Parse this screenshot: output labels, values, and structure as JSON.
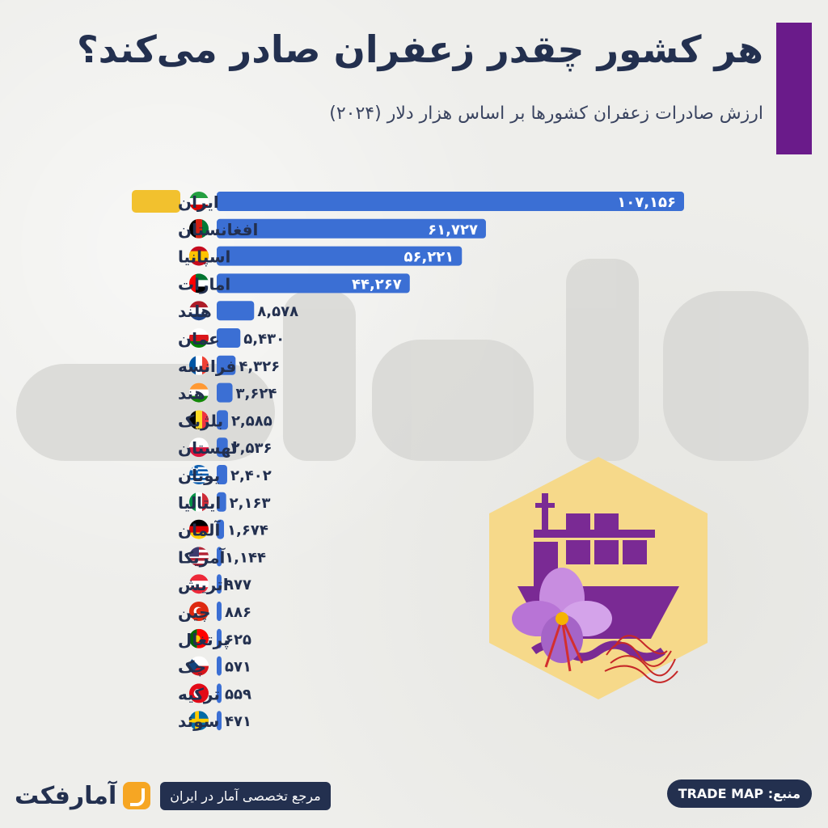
{
  "header": {
    "title": "هر کشور چقدر زعفران صادر می‌کند؟",
    "subtitle": "ارزش صادرات زعفران کشورها بر اساس هزار دلار (۲۰۲۴)"
  },
  "colors": {
    "bar": "#3b6fd4",
    "title": "#23304f",
    "accent": "#6a1b8a",
    "highlight": "#f2c12e"
  },
  "chart_data": {
    "type": "bar",
    "orientation": "horizontal",
    "title": "هر کشور چقدر زعفران صادر می‌کند؟",
    "subtitle": "ارزش صادرات زعفران کشورها بر اساس هزار دلار (۲۰۲۴)",
    "categories": [
      "ایران",
      "افغانستان",
      "اسپانیا",
      "امارات",
      "هلند",
      "عمان",
      "فرانسه",
      "هند",
      "بلژیک",
      "لهستان",
      "یونان",
      "ایتالیا",
      "آلمان",
      "آمریکا",
      "اتریش",
      "چین",
      "پرتغال",
      "چک",
      "ترکیه",
      "سوئد"
    ],
    "values": [
      107156,
      61727,
      56221,
      44267,
      8578,
      5430,
      4326,
      3624,
      2585,
      2536,
      2402,
      2163,
      1674,
      1144,
      977,
      886,
      625,
      571,
      559,
      471
    ],
    "value_labels": [
      "۱۰۷,۱۵۶",
      "۶۱,۷۲۷",
      "۵۶,۲۲۱",
      "۴۴,۲۶۷",
      "۸,۵۷۸",
      "۵,۴۳۰",
      "۴,۳۲۶",
      "۳,۶۲۴",
      "۲,۵۸۵",
      "۲,۵۳۶",
      "۲,۴۰۲",
      "۲,۱۶۳",
      "۱,۶۷۴",
      "۱,۱۴۴",
      "۹۷۷",
      "۸۸۶",
      "۶۲۵",
      "۵۷۱",
      "۵۵۹",
      "۴۷۱"
    ],
    "flags": [
      "iran-flag-icon",
      "afghanistan-flag-icon",
      "spain-flag-icon",
      "uae-flag-icon",
      "netherlands-flag-icon",
      "oman-flag-icon",
      "france-flag-icon",
      "india-flag-icon",
      "belgium-flag-icon",
      "poland-flag-icon",
      "greece-flag-icon",
      "italy-flag-icon",
      "germany-flag-icon",
      "usa-flag-icon",
      "austria-flag-icon",
      "china-flag-icon",
      "portugal-flag-icon",
      "czech-flag-icon",
      "turkey-flag-icon",
      "sweden-flag-icon"
    ],
    "highlighted_category": "ایران",
    "grid": false
  },
  "footer": {
    "logo_text": "آمارفکت",
    "tagline": "مرجع تخصصی آمار در ایران",
    "source": "منبع: TRADE MAP"
  }
}
